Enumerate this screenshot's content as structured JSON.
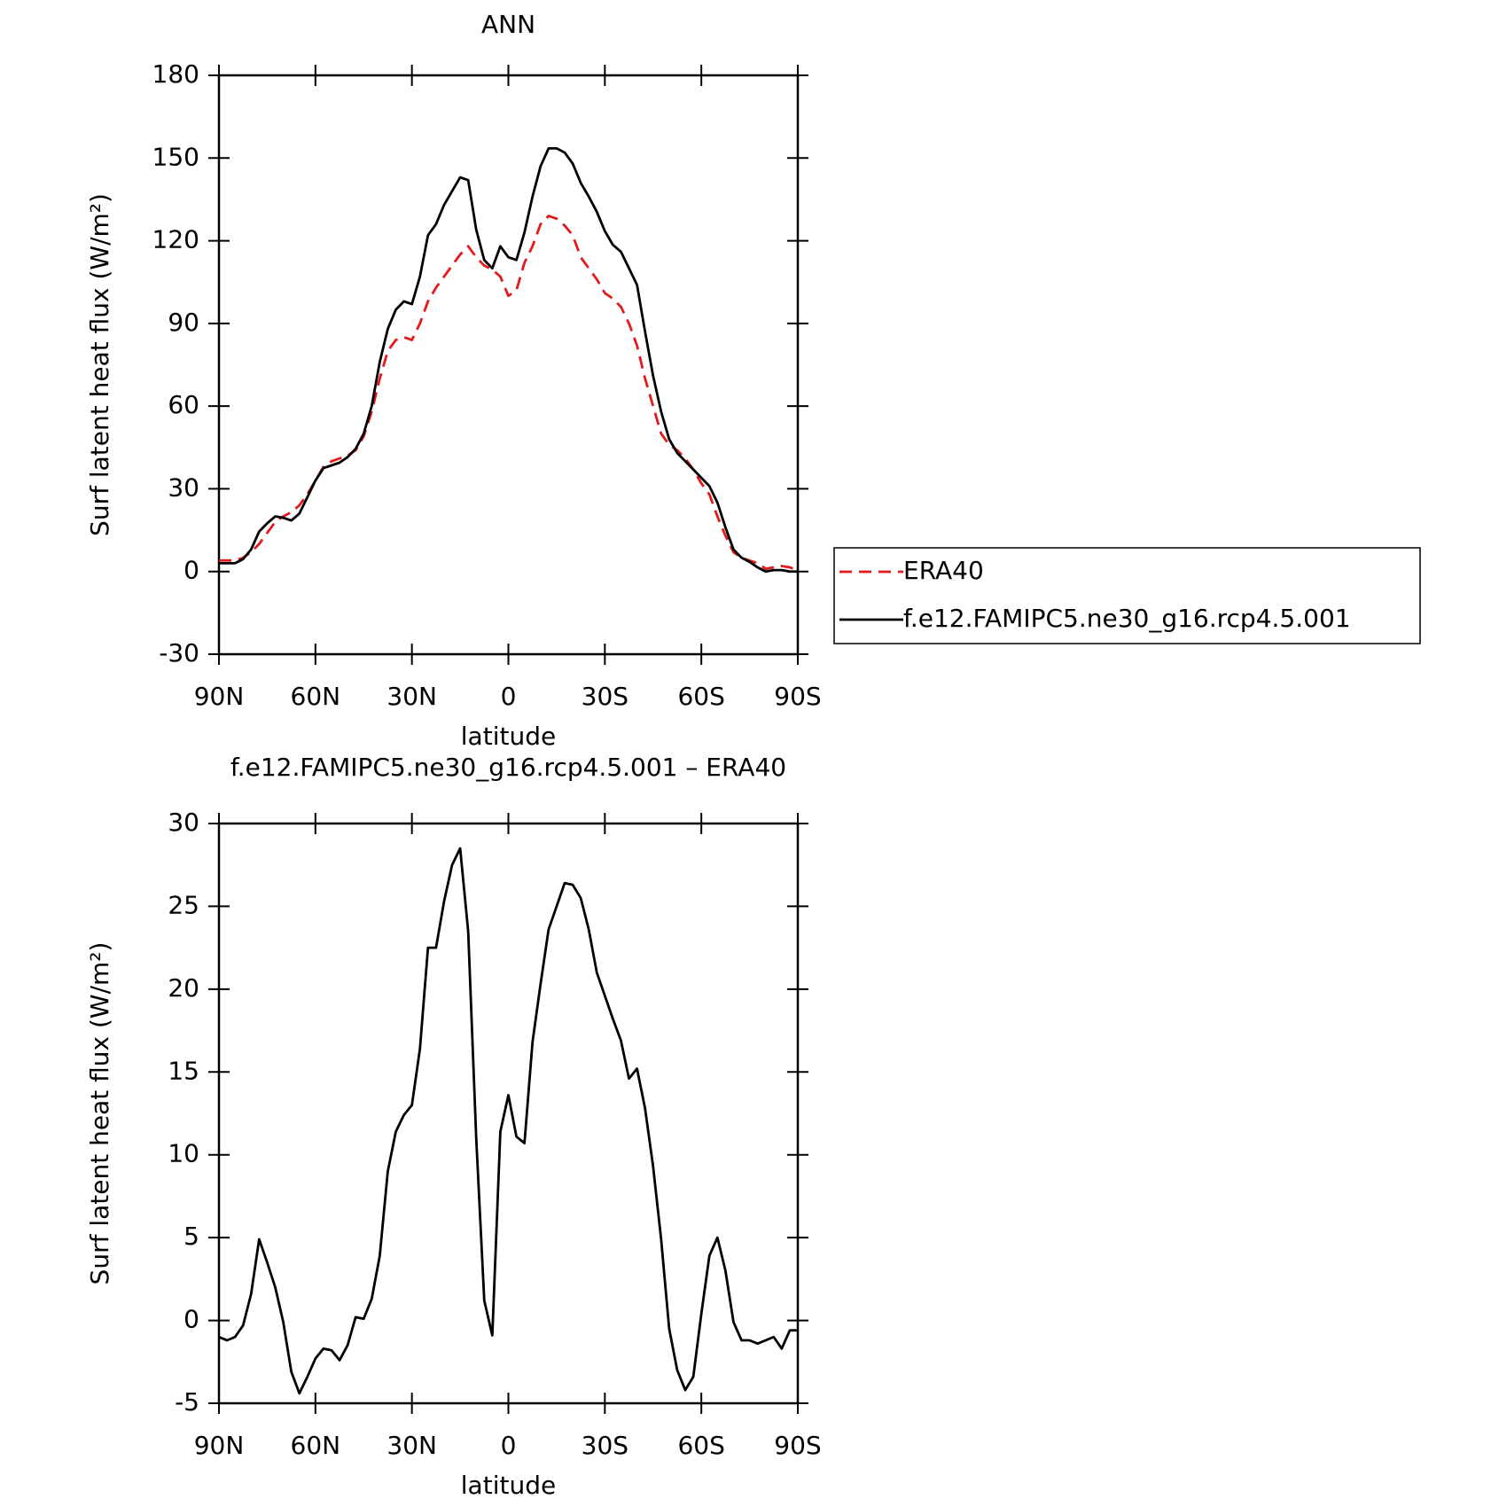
{
  "chart_data": [
    {
      "type": "line",
      "title": "ANN",
      "x_label": "latitude",
      "y_label": "Surf latent heat flux (W/m²)",
      "x": [
        90,
        87.5,
        85,
        82.5,
        80,
        77.5,
        75,
        72.5,
        70,
        67.5,
        65,
        62.5,
        60,
        57.5,
        55,
        52.5,
        50,
        47.5,
        45,
        42.5,
        40,
        37.5,
        35,
        32.5,
        30,
        27.5,
        25,
        22.5,
        20,
        17.5,
        15,
        12.5,
        10,
        7.5,
        5,
        2.5,
        0,
        -2.5,
        -5,
        -7.5,
        -10,
        -12.5,
        -15,
        -17.5,
        -20,
        -22.5,
        -25,
        -27.5,
        -30,
        -32.5,
        -35,
        -37.5,
        -40,
        -42.5,
        -45,
        -47.5,
        -50,
        -52.5,
        -55,
        -57.5,
        -60,
        -62.5,
        -65,
        -67.5,
        -70,
        -72.5,
        -75,
        -77.5,
        -80,
        -82.5,
        -85,
        -87.5,
        -90
      ],
      "xlim": [
        90,
        -90
      ],
      "xticks": [
        {
          "value": 90,
          "label": "90N"
        },
        {
          "value": 60,
          "label": "60N"
        },
        {
          "value": 30,
          "label": "30N"
        },
        0,
        {
          "value": -30,
          "label": "30S"
        },
        {
          "value": -60,
          "label": "60S"
        },
        {
          "value": -90,
          "label": "90S"
        }
      ],
      "ylim": [
        -30,
        180
      ],
      "yticks": [
        -30,
        0,
        30,
        60,
        90,
        120,
        150,
        180
      ],
      "legend": "outside right",
      "series": [
        {
          "name": "ERA40",
          "color": "#e31a1c",
          "line_style": "dashed",
          "values": [
            4,
            4,
            4,
            5,
            7,
            10,
            14,
            18,
            20,
            21.5,
            24,
            28,
            33,
            38,
            40,
            41,
            42,
            44,
            49,
            58,
            70,
            80,
            84,
            85,
            84,
            90,
            98,
            103,
            107,
            111,
            115,
            118,
            114,
            111,
            109.5,
            107,
            100,
            102,
            112,
            118,
            126,
            129,
            128,
            125.5,
            122,
            114,
            110,
            106,
            101,
            99,
            96,
            90,
            82,
            70,
            60,
            50,
            46,
            44,
            41,
            37,
            32,
            28,
            20,
            13,
            7,
            5,
            4,
            3,
            1,
            1.5,
            2,
            1.5,
            0.5
          ]
        },
        {
          "name": "f.e12.FAMIPC5.ne30_g16.rcp4.5.001",
          "color": "#000000",
          "line_style": "solid",
          "values": [
            3,
            3,
            3,
            4.5,
            8,
            14.5,
            17.5,
            20,
            19.5,
            18.5,
            21,
            27,
            33,
            37.5,
            38.5,
            39.5,
            41.5,
            44.5,
            50,
            60,
            76,
            88,
            95,
            98,
            97,
            107,
            122,
            126,
            133,
            138,
            143,
            142,
            124,
            113,
            110,
            118,
            114,
            113,
            123,
            136,
            147,
            153.5,
            153.5,
            152,
            148,
            141,
            136,
            130.5,
            123.5,
            118.5,
            116,
            110,
            104,
            87,
            71,
            58,
            48,
            43,
            40,
            37,
            34,
            31,
            25,
            16,
            8,
            5,
            3.5,
            1.5,
            0,
            0.5,
            0.5,
            0,
            0
          ]
        }
      ]
    },
    {
      "type": "line",
      "title": "f.e12.FAMIPC5.ne30_g16.rcp4.5.001 – ERA40",
      "x_label": "latitude",
      "y_label": "Surf latent heat flux (W/m²)",
      "x": [
        90,
        87.5,
        85,
        82.5,
        80,
        77.5,
        75,
        72.5,
        70,
        67.5,
        65,
        62.5,
        60,
        57.5,
        55,
        52.5,
        50,
        47.5,
        45,
        42.5,
        40,
        37.5,
        35,
        32.5,
        30,
        27.5,
        25,
        22.5,
        20,
        17.5,
        15,
        12.5,
        10,
        7.5,
        5,
        2.5,
        0,
        -2.5,
        -5,
        -7.5,
        -10,
        -12.5,
        -15,
        -17.5,
        -20,
        -22.5,
        -25,
        -27.5,
        -30,
        -32.5,
        -35,
        -37.5,
        -40,
        -42.5,
        -45,
        -47.5,
        -50,
        -52.5,
        -55,
        -57.5,
        -60,
        -62.5,
        -65,
        -67.5,
        -70,
        -72.5,
        -75,
        -77.5,
        -80,
        -82.5,
        -85,
        -87.5,
        -90
      ],
      "xlim": [
        90,
        -90
      ],
      "xticks": [
        {
          "value": 90,
          "label": "90N"
        },
        {
          "value": 60,
          "label": "60N"
        },
        {
          "value": 30,
          "label": "30N"
        },
        0,
        {
          "value": -30,
          "label": "30S"
        },
        {
          "value": -60,
          "label": "60S"
        },
        {
          "value": -90,
          "label": "90S"
        }
      ],
      "ylim": [
        -5,
        30
      ],
      "yticks": [
        -5,
        0,
        5,
        10,
        15,
        20,
        25,
        30
      ],
      "color": "#000000",
      "values": [
        -1,
        -1.2,
        -1,
        -0.3,
        1.6,
        4.9,
        3.5,
        2,
        -0.1,
        -3.1,
        -4.4,
        -3.4,
        -2.3,
        -1.7,
        -1.8,
        -2.4,
        -1.5,
        0.2,
        0.1,
        1.3,
        3.9,
        9,
        11.4,
        12.4,
        13,
        16.4,
        22.5,
        22.5,
        25.3,
        27.5,
        28.5,
        23.5,
        11,
        1.2,
        -0.9,
        11.4,
        13.6,
        11.1,
        10.7,
        16.8,
        20.3,
        23.6,
        25,
        26.4,
        26.3,
        25.5,
        23.6,
        21,
        19.6,
        18.2,
        16.9,
        14.6,
        15.2,
        12.8,
        9.3,
        4.9,
        -0.5,
        -3,
        -4.2,
        -3.4,
        0.4,
        3.9,
        5,
        3,
        -0.1,
        -1.2,
        -1.2,
        -1.4,
        -1.2,
        -1,
        -1.7,
        -0.6,
        -0.6
      ]
    }
  ]
}
